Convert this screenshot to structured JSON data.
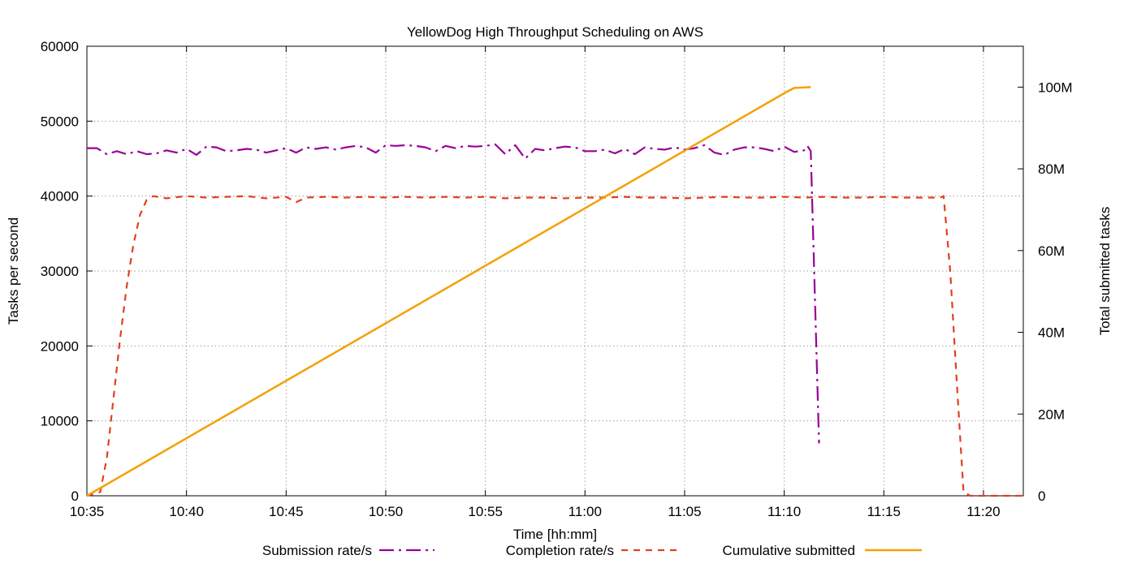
{
  "chart_data": {
    "type": "line",
    "title": "YellowDog High Throughput Scheduling on AWS",
    "xlabel": "Time [hh:mm]",
    "ylabel": "Tasks per second",
    "y2label": "Total submitted tasks",
    "xlim": [
      "10:35",
      "11:22"
    ],
    "ylim": [
      0,
      60000
    ],
    "y2lim": [
      0,
      110000000
    ],
    "x_ticks": [
      "10:35",
      "10:40",
      "10:45",
      "10:50",
      "10:55",
      "11:00",
      "11:05",
      "11:10",
      "11:15",
      "11:20"
    ],
    "y_ticks": [
      "0",
      "10000",
      "20000",
      "30000",
      "40000",
      "50000",
      "60000"
    ],
    "y2_ticks": [
      "0",
      "20M",
      "40M",
      "60M",
      "80M",
      "100M"
    ],
    "grid": true,
    "legend_position": "bottom",
    "series": [
      {
        "name": "Submission rate/s",
        "color": "#990099",
        "dash": "dash-dot",
        "axis": "left",
        "points": [
          [
            "10:35",
            46400
          ],
          [
            "10:35:30",
            46400
          ],
          [
            "10:36",
            45600
          ],
          [
            "10:36:30",
            46000
          ],
          [
            "10:37",
            45600
          ],
          [
            "10:37:30",
            46000
          ],
          [
            "10:38",
            45600
          ],
          [
            "10:38:30",
            45700
          ],
          [
            "10:39",
            46100
          ],
          [
            "10:39:30",
            45800
          ],
          [
            "10:40",
            46300
          ],
          [
            "10:40:30",
            45500
          ],
          [
            "10:41",
            46600
          ],
          [
            "10:41:30",
            46500
          ],
          [
            "10:42",
            46000
          ],
          [
            "10:42:30",
            46100
          ],
          [
            "10:43",
            46300
          ],
          [
            "10:43:30",
            46200
          ],
          [
            "10:44",
            45800
          ],
          [
            "10:44:30",
            46100
          ],
          [
            "10:45",
            46400
          ],
          [
            "10:45:30",
            45800
          ],
          [
            "10:46",
            46500
          ],
          [
            "10:46:30",
            46300
          ],
          [
            "10:47",
            46500
          ],
          [
            "10:47:30",
            46200
          ],
          [
            "10:48",
            46500
          ],
          [
            "10:48:30",
            46700
          ],
          [
            "10:49",
            46500
          ],
          [
            "10:49:30",
            45800
          ],
          [
            "10:50",
            46800
          ],
          [
            "10:50:30",
            46700
          ],
          [
            "10:51",
            46800
          ],
          [
            "10:51:30",
            46700
          ],
          [
            "10:52",
            46500
          ],
          [
            "10:52:30",
            46000
          ],
          [
            "10:53",
            46700
          ],
          [
            "10:53:30",
            46400
          ],
          [
            "10:54",
            46700
          ],
          [
            "10:54:30",
            46600
          ],
          [
            "10:55",
            46700
          ],
          [
            "10:55:30",
            46900
          ],
          [
            "10:56",
            45600
          ],
          [
            "10:56:30",
            46800
          ],
          [
            "10:57",
            45000
          ],
          [
            "10:57:30",
            46300
          ],
          [
            "10:58",
            46100
          ],
          [
            "10:58:30",
            46400
          ],
          [
            "10:59",
            46600
          ],
          [
            "10:59:30",
            46500
          ],
          [
            "11:00",
            46000
          ],
          [
            "11:00:30",
            46000
          ],
          [
            "11:01",
            46200
          ],
          [
            "11:01:30",
            45700
          ],
          [
            "11:02",
            46300
          ],
          [
            "11:02:30",
            45600
          ],
          [
            "11:03",
            46500
          ],
          [
            "11:03:30",
            46300
          ],
          [
            "11:04",
            46200
          ],
          [
            "11:04:30",
            46500
          ],
          [
            "11:05",
            46200
          ],
          [
            "11:05:30",
            46400
          ],
          [
            "11:06",
            46800
          ],
          [
            "11:06:30",
            45800
          ],
          [
            "11:07",
            45500
          ],
          [
            "11:07:30",
            46200
          ],
          [
            "11:08",
            46500
          ],
          [
            "11:08:30",
            46500
          ],
          [
            "11:09",
            46300
          ],
          [
            "11:09:30",
            46000
          ],
          [
            "11:10",
            46600
          ],
          [
            "11:10:30",
            45900
          ],
          [
            "11:11",
            46100
          ],
          [
            "11:11:10",
            46700
          ],
          [
            "11:11:20",
            46000
          ],
          [
            "11:11:45",
            7000
          ]
        ]
      },
      {
        "name": "Completion rate/s",
        "color": "#e04020",
        "dash": "dashed",
        "axis": "left",
        "points": [
          [
            "10:35",
            0
          ],
          [
            "10:35:40",
            500
          ],
          [
            "10:36",
            5000
          ],
          [
            "10:36:20",
            13000
          ],
          [
            "10:36:40",
            21000
          ],
          [
            "10:37",
            28000
          ],
          [
            "10:37:20",
            33500
          ],
          [
            "10:37:40",
            37500
          ],
          [
            "10:38",
            39500
          ],
          [
            "10:38:20",
            40000
          ],
          [
            "10:39",
            39700
          ],
          [
            "10:40",
            40000
          ],
          [
            "10:41",
            39800
          ],
          [
            "10:42",
            39900
          ],
          [
            "10:43",
            40000
          ],
          [
            "10:44",
            39700
          ],
          [
            "10:45",
            39900
          ],
          [
            "10:45:30",
            39200
          ],
          [
            "10:46",
            39800
          ],
          [
            "10:47",
            39900
          ],
          [
            "10:48",
            39800
          ],
          [
            "10:49",
            39900
          ],
          [
            "10:50",
            39800
          ],
          [
            "10:51",
            39900
          ],
          [
            "10:52",
            39800
          ],
          [
            "10:53",
            39900
          ],
          [
            "10:54",
            39800
          ],
          [
            "10:55",
            39900
          ],
          [
            "10:56",
            39700
          ],
          [
            "10:57",
            39800
          ],
          [
            "10:58",
            39800
          ],
          [
            "10:59",
            39700
          ],
          [
            "11:00",
            39800
          ],
          [
            "11:01",
            39800
          ],
          [
            "11:02",
            39900
          ],
          [
            "11:03",
            39800
          ],
          [
            "11:04",
            39800
          ],
          [
            "11:05",
            39700
          ],
          [
            "11:06",
            39800
          ],
          [
            "11:07",
            39900
          ],
          [
            "11:08",
            39800
          ],
          [
            "11:09",
            39800
          ],
          [
            "11:10",
            39900
          ],
          [
            "11:11",
            39800
          ],
          [
            "11:12",
            39900
          ],
          [
            "11:13",
            39800
          ],
          [
            "11:14",
            39800
          ],
          [
            "11:15",
            39900
          ],
          [
            "11:16",
            39800
          ],
          [
            "11:17",
            39800
          ],
          [
            "11:17:50",
            39800
          ],
          [
            "11:18",
            40000
          ],
          [
            "11:18:20",
            30000
          ],
          [
            "11:18:40",
            15000
          ],
          [
            "11:19",
            500
          ],
          [
            "11:19:20",
            0
          ],
          [
            "11:20",
            0
          ],
          [
            "11:21",
            0
          ],
          [
            "11:22",
            0
          ]
        ]
      },
      {
        "name": "Cumulative submitted",
        "color": "#f5a000",
        "dash": "solid",
        "axis": "right",
        "points": [
          [
            "10:35",
            0
          ],
          [
            "11:10",
            98500000
          ],
          [
            "11:10:30",
            99800000
          ],
          [
            "11:11:20",
            100000000
          ]
        ]
      }
    ]
  }
}
